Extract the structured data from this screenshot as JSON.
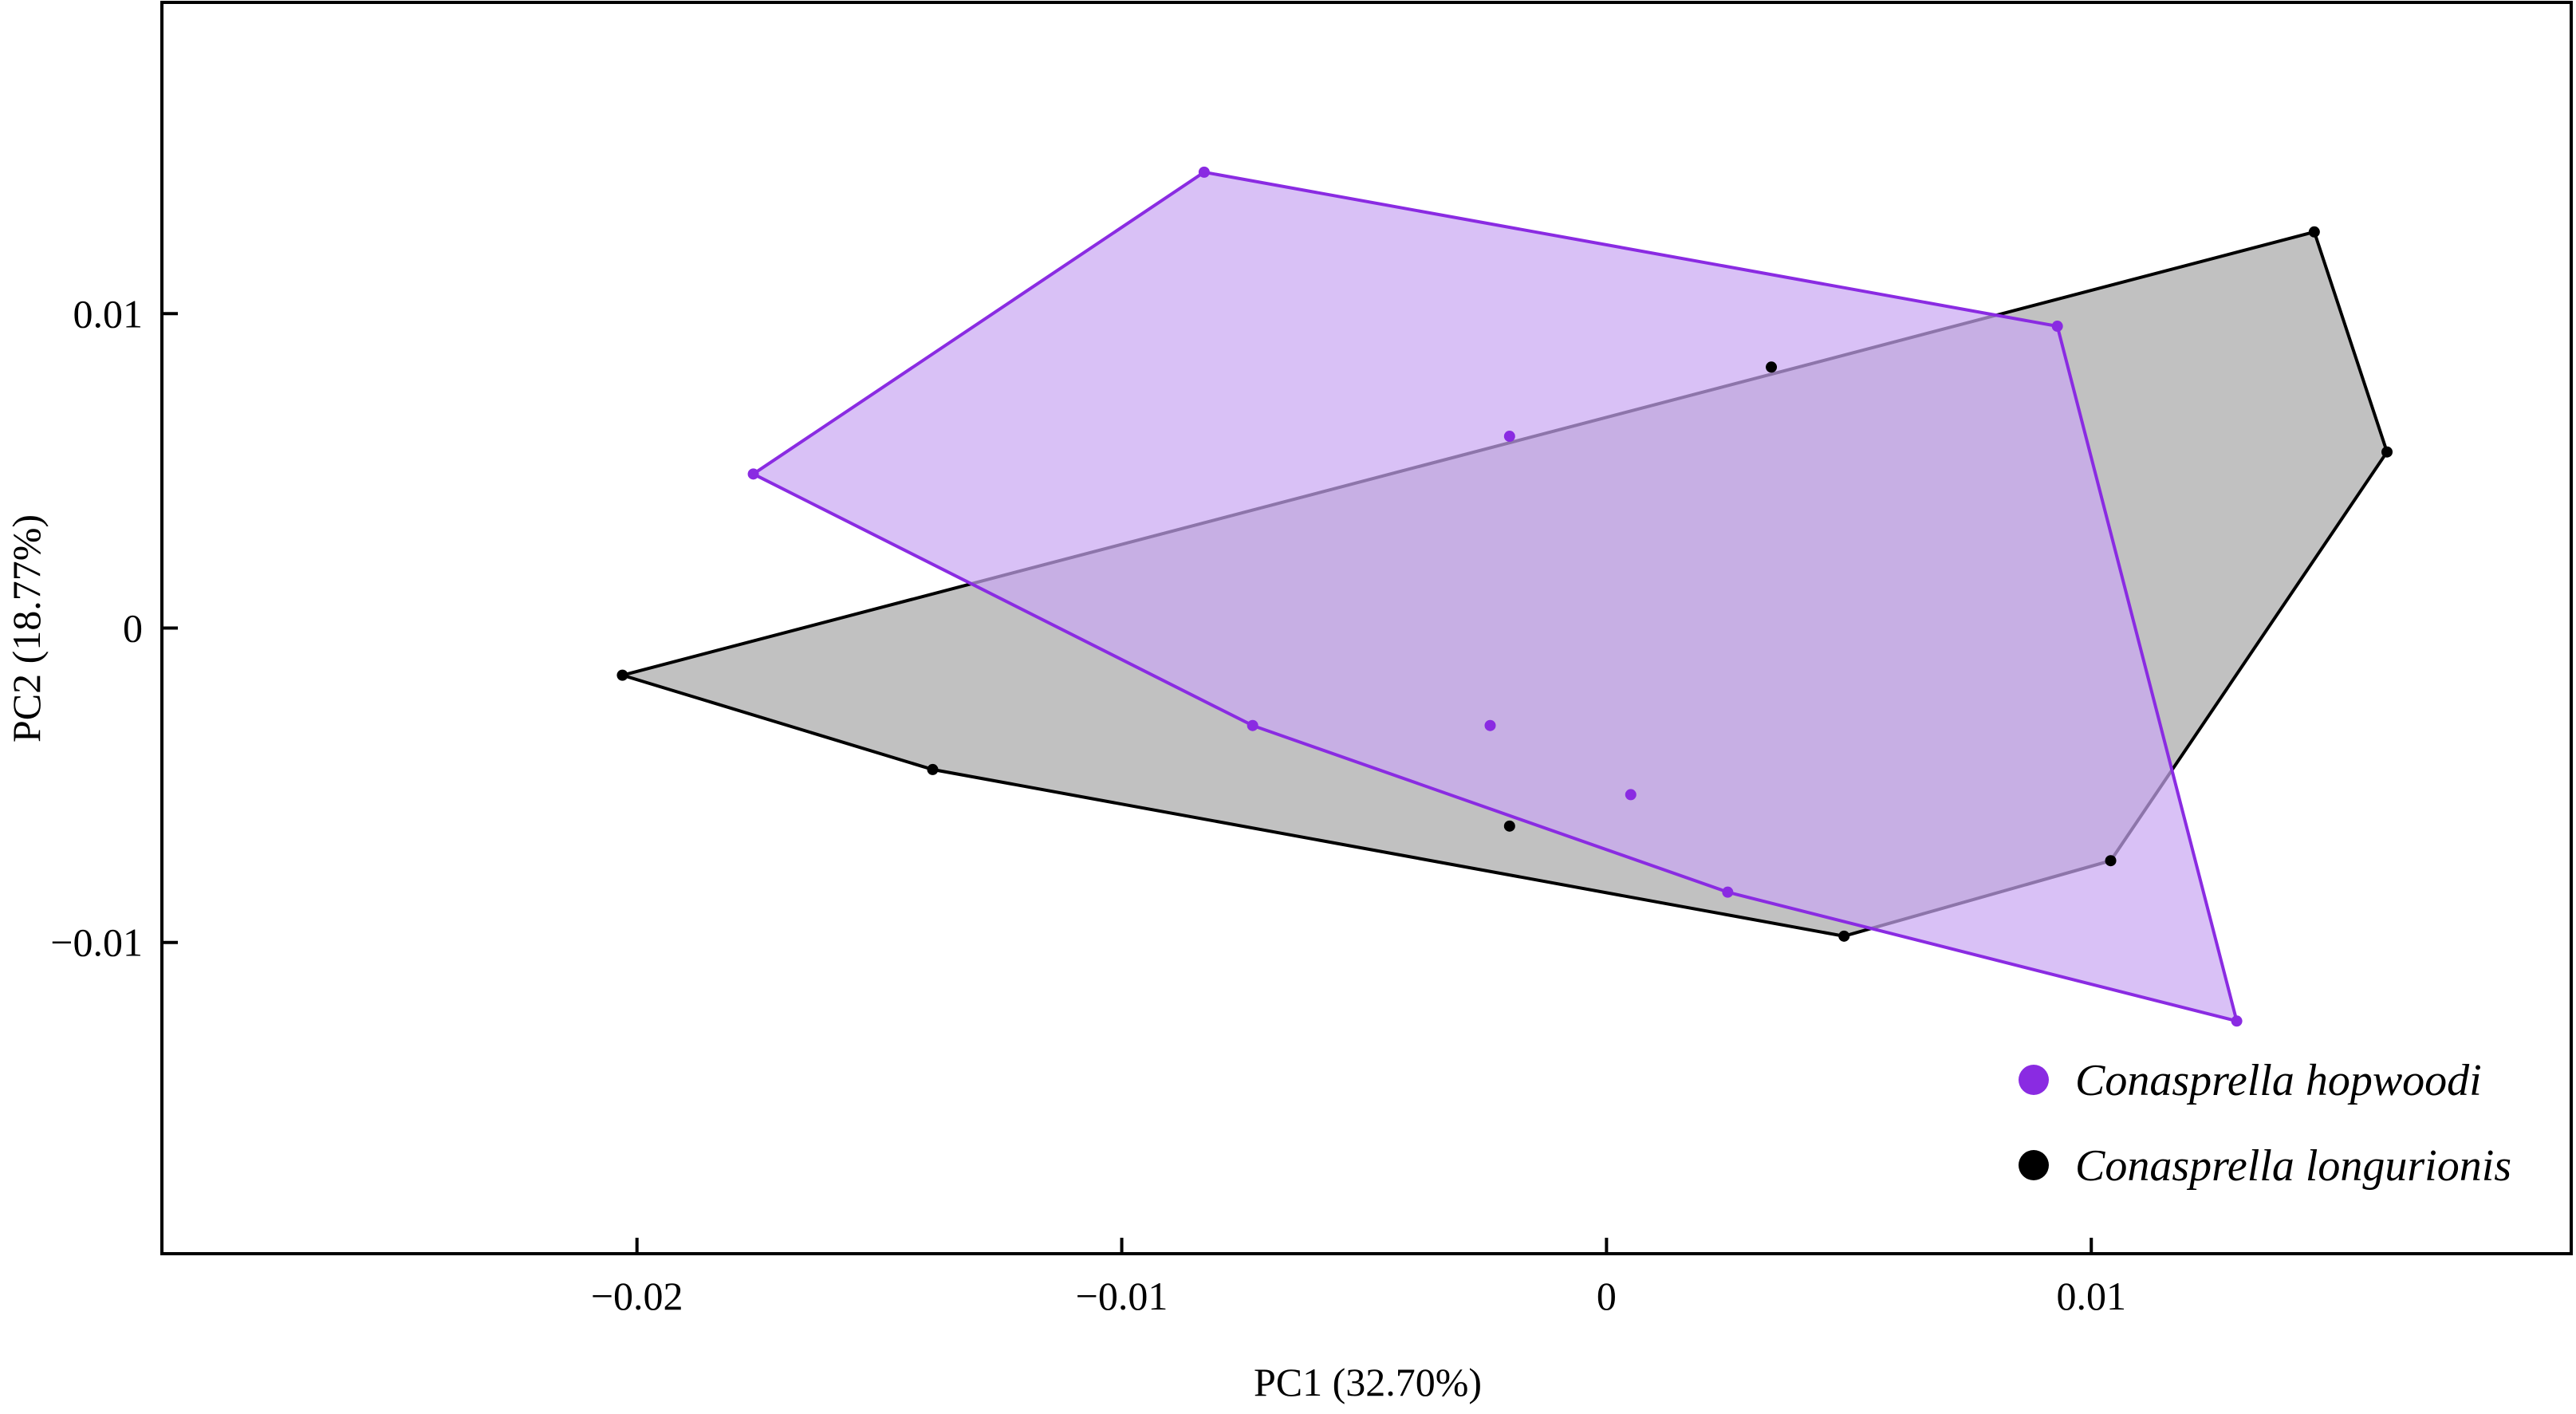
{
  "chart_data": {
    "type": "scatter",
    "xlabel": "PC1 (32.70%)",
    "ylabel": "PC2 (18.77%)",
    "xlim": [
      -0.0298,
      0.0199
    ],
    "ylim": [
      -0.0199,
      0.0199
    ],
    "x_ticks": [
      -0.02,
      -0.01,
      0,
      0.01
    ],
    "x_tick_labels": [
      "−0.02",
      "−0.01",
      "0",
      "0.01"
    ],
    "y_ticks": [
      -0.01,
      0,
      0.01
    ],
    "y_tick_labels": [
      "−0.01",
      "0",
      "0.01"
    ],
    "grid": false,
    "legend_position": "bottom-right",
    "series": [
      {
        "name": "Conasprella longurionis",
        "color": "#000000",
        "fill": "#a6a6a6",
        "points": [
          [
            -0.0203,
            -0.0015
          ],
          [
            -0.0139,
            -0.0045
          ],
          [
            -0.002,
            -0.0063
          ],
          [
            0.0034,
            0.0083
          ],
          [
            0.0049,
            -0.0098
          ],
          [
            0.0104,
            -0.0074
          ],
          [
            0.0146,
            0.0126
          ],
          [
            0.0161,
            0.0056
          ]
        ],
        "hull": [
          [
            -0.0203,
            -0.0015
          ],
          [
            0.0146,
            0.0126
          ],
          [
            0.0161,
            0.0056
          ],
          [
            0.0104,
            -0.0074
          ],
          [
            0.0049,
            -0.0098
          ],
          [
            -0.0139,
            -0.0045
          ]
        ]
      },
      {
        "name": "Conasprella hopwoodi",
        "color": "#8a2be2",
        "fill": "#c9a6f2",
        "points": [
          [
            -0.0176,
            0.0049
          ],
          [
            -0.0083,
            0.0145
          ],
          [
            -0.0073,
            -0.0031
          ],
          [
            -0.0024,
            -0.0031
          ],
          [
            -0.002,
            0.0061
          ],
          [
            0.0005,
            -0.0053
          ],
          [
            0.0025,
            -0.0084
          ],
          [
            0.0093,
            0.0096
          ],
          [
            0.013,
            -0.0125
          ]
        ],
        "hull": [
          [
            -0.0176,
            0.0049
          ],
          [
            -0.0083,
            0.0145
          ],
          [
            0.0093,
            0.0096
          ],
          [
            0.013,
            -0.0125
          ],
          [
            0.0025,
            -0.0084
          ],
          [
            -0.0073,
            -0.0031
          ]
        ]
      }
    ]
  }
}
